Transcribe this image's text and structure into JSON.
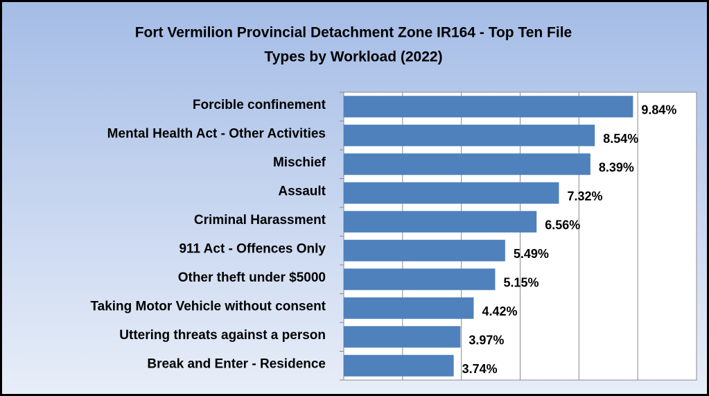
{
  "chart_data": {
    "type": "bar",
    "orientation": "horizontal",
    "title": [
      "Fort Vermilion Provincial Detachment Zone IR164 - Top Ten File",
      "Types by Workload (2022)"
    ],
    "categories": [
      "Forcible confinement",
      "Mental Health Act - Other Activities",
      "Mischief",
      "Assault",
      "Criminal Harassment",
      "911 Act - Offences Only",
      "Other theft under $5000",
      "Taking Motor Vehicle without consent",
      "Uttering threats against a person",
      "Break and Enter - Residence"
    ],
    "values": [
      9.84,
      8.54,
      8.39,
      7.32,
      6.56,
      5.49,
      5.15,
      4.42,
      3.97,
      3.74
    ],
    "value_labels": [
      "9.84%",
      "8.54%",
      "8.39%",
      "7.32%",
      "6.56%",
      "5.49%",
      "5.15%",
      "4.42%",
      "3.97%",
      "3.74%"
    ],
    "color": "#4f81bd",
    "xlim": [
      0,
      12
    ],
    "xticks": [
      0,
      2,
      4,
      6,
      8,
      10,
      12
    ],
    "grid": true
  }
}
